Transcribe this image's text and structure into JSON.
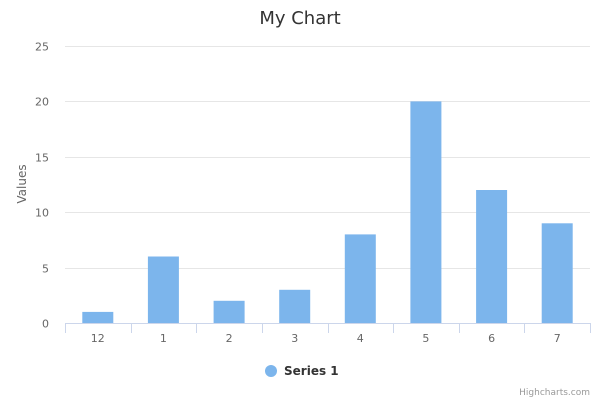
{
  "chart_data": {
    "type": "bar",
    "title": "My Chart",
    "xlabel": "",
    "ylabel": "Values",
    "categories": [
      "12",
      "1",
      "2",
      "3",
      "4",
      "5",
      "6",
      "7"
    ],
    "series": [
      {
        "name": "Series 1",
        "values": [
          1,
          6,
          2,
          3,
          8,
          20,
          12,
          9
        ]
      }
    ],
    "ylim": [
      0,
      25
    ],
    "yticks": [
      0,
      5,
      10,
      15,
      20,
      25
    ],
    "grid": true,
    "legend_position": "bottom-center",
    "colors": {
      "bar": "#7cb5ec"
    }
  },
  "credits": "Highcharts.com"
}
